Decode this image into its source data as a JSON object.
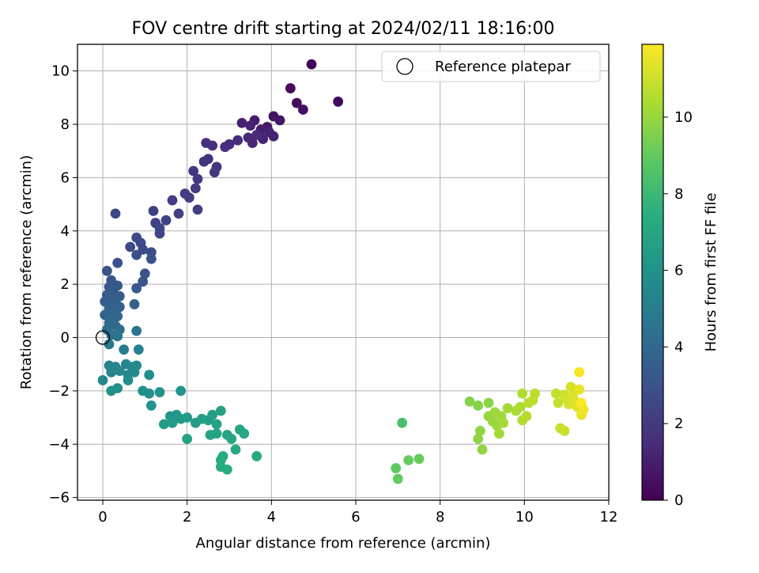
{
  "chart_data": {
    "type": "scatter",
    "title": "FOV centre drift starting at 2024/02/11 18:16:00",
    "xlabel": "Angular distance from reference (arcmin)",
    "ylabel": "Rotation from reference (arcmin)",
    "xlim": [
      -0.6,
      12
    ],
    "ylim": [
      -6.1,
      11.0
    ],
    "xticks": [
      0,
      2,
      4,
      6,
      8,
      10,
      12
    ],
    "yticks": [
      -6,
      -4,
      -2,
      0,
      2,
      4,
      6,
      8,
      10
    ],
    "grid": true,
    "legend": {
      "placement": "top-right",
      "entries": [
        "Reference platepar"
      ]
    },
    "reference_point": {
      "x": 0,
      "y": 0,
      "label": "Reference platepar"
    },
    "colorbar": {
      "label": "Hours from first FF file",
      "colormap": "viridis",
      "range": [
        0,
        11.9
      ],
      "ticks": [
        0,
        2,
        4,
        6,
        8,
        10
      ]
    },
    "points": [
      {
        "x": 4.95,
        "y": 10.25,
        "h": 0.1
      },
      {
        "x": 5.58,
        "y": 8.85,
        "h": 0.2
      },
      {
        "x": 4.45,
        "y": 9.35,
        "h": 0.3
      },
      {
        "x": 4.6,
        "y": 8.8,
        "h": 0.4
      },
      {
        "x": 4.75,
        "y": 8.55,
        "h": 0.5
      },
      {
        "x": 4.05,
        "y": 8.3,
        "h": 0.6
      },
      {
        "x": 4.2,
        "y": 8.15,
        "h": 0.7
      },
      {
        "x": 3.9,
        "y": 7.9,
        "h": 0.8
      },
      {
        "x": 3.6,
        "y": 8.15,
        "h": 0.9
      },
      {
        "x": 3.75,
        "y": 7.8,
        "h": 1.0
      },
      {
        "x": 3.3,
        "y": 8.05,
        "h": 1.05
      },
      {
        "x": 3.5,
        "y": 7.95,
        "h": 1.1
      },
      {
        "x": 4.05,
        "y": 7.55,
        "h": 1.15
      },
      {
        "x": 3.95,
        "y": 7.7,
        "h": 1.2
      },
      {
        "x": 3.8,
        "y": 7.45,
        "h": 1.25
      },
      {
        "x": 3.55,
        "y": 7.3,
        "h": 1.3
      },
      {
        "x": 3.45,
        "y": 7.5,
        "h": 1.35
      },
      {
        "x": 3.65,
        "y": 7.6,
        "h": 1.4
      },
      {
        "x": 3.2,
        "y": 7.4,
        "h": 1.45
      },
      {
        "x": 3.0,
        "y": 7.25,
        "h": 1.5
      },
      {
        "x": 2.9,
        "y": 7.15,
        "h": 1.55
      },
      {
        "x": 2.6,
        "y": 7.2,
        "h": 1.6
      },
      {
        "x": 2.45,
        "y": 7.3,
        "h": 1.65
      },
      {
        "x": 2.5,
        "y": 6.7,
        "h": 1.7
      },
      {
        "x": 2.4,
        "y": 6.6,
        "h": 1.75
      },
      {
        "x": 2.7,
        "y": 6.4,
        "h": 1.8
      },
      {
        "x": 2.65,
        "y": 6.2,
        "h": 1.85
      },
      {
        "x": 2.15,
        "y": 6.25,
        "h": 1.9
      },
      {
        "x": 2.25,
        "y": 5.95,
        "h": 1.95
      },
      {
        "x": 2.2,
        "y": 5.6,
        "h": 2.0
      },
      {
        "x": 1.95,
        "y": 5.4,
        "h": 2.05
      },
      {
        "x": 2.05,
        "y": 5.25,
        "h": 2.1
      },
      {
        "x": 1.65,
        "y": 5.15,
        "h": 2.15
      },
      {
        "x": 2.25,
        "y": 4.8,
        "h": 2.2
      },
      {
        "x": 1.8,
        "y": 4.65,
        "h": 2.25
      },
      {
        "x": 1.2,
        "y": 4.75,
        "h": 2.3
      },
      {
        "x": 1.25,
        "y": 4.3,
        "h": 2.35
      },
      {
        "x": 1.5,
        "y": 4.4,
        "h": 2.4
      },
      {
        "x": 1.35,
        "y": 4.1,
        "h": 2.45
      },
      {
        "x": 1.35,
        "y": 3.9,
        "h": 2.5
      },
      {
        "x": 0.3,
        "y": 4.65,
        "h": 2.55
      },
      {
        "x": 0.8,
        "y": 3.75,
        "h": 2.6
      },
      {
        "x": 0.9,
        "y": 3.55,
        "h": 2.65
      },
      {
        "x": 0.65,
        "y": 3.4,
        "h": 2.7
      },
      {
        "x": 0.95,
        "y": 3.3,
        "h": 2.75
      },
      {
        "x": 1.15,
        "y": 3.2,
        "h": 2.8
      },
      {
        "x": 0.8,
        "y": 3.1,
        "h": 2.85
      },
      {
        "x": 1.15,
        "y": 2.95,
        "h": 2.9
      },
      {
        "x": 0.35,
        "y": 2.8,
        "h": 2.95
      },
      {
        "x": 0.1,
        "y": 2.5,
        "h": 3.0
      },
      {
        "x": 1.0,
        "y": 2.4,
        "h": 3.05
      },
      {
        "x": 0.95,
        "y": 2.1,
        "h": 3.1
      },
      {
        "x": 0.2,
        "y": 2.15,
        "h": 3.15
      },
      {
        "x": 0.15,
        "y": 1.9,
        "h": 3.2
      },
      {
        "x": 0.35,
        "y": 1.95,
        "h": 3.25
      },
      {
        "x": 0.8,
        "y": 1.85,
        "h": 3.3
      },
      {
        "x": 0.25,
        "y": 1.7,
        "h": 3.35
      },
      {
        "x": 0.1,
        "y": 1.6,
        "h": 3.4
      },
      {
        "x": 0.4,
        "y": 1.55,
        "h": 3.45
      },
      {
        "x": 0.2,
        "y": 1.45,
        "h": 3.5
      },
      {
        "x": 0.05,
        "y": 1.35,
        "h": 3.55
      },
      {
        "x": 0.3,
        "y": 1.3,
        "h": 3.6
      },
      {
        "x": 0.75,
        "y": 1.25,
        "h": 3.65
      },
      {
        "x": 0.15,
        "y": 1.1,
        "h": 3.7
      },
      {
        "x": 0.4,
        "y": 1.15,
        "h": 3.75
      },
      {
        "x": 0.25,
        "y": 0.95,
        "h": 3.8
      },
      {
        "x": 0.05,
        "y": 0.85,
        "h": 3.85
      },
      {
        "x": 0.2,
        "y": 0.7,
        "h": 3.9
      },
      {
        "x": 0.35,
        "y": 0.8,
        "h": 3.95
      },
      {
        "x": 0.15,
        "y": 0.55,
        "h": 4.0
      },
      {
        "x": 0.3,
        "y": 0.45,
        "h": 4.1
      },
      {
        "x": 0.1,
        "y": 0.3,
        "h": 4.2
      },
      {
        "x": 0.4,
        "y": 0.3,
        "h": 4.3
      },
      {
        "x": 0.2,
        "y": 0.1,
        "h": 4.4
      },
      {
        "x": 0.35,
        "y": 0.05,
        "h": 4.5
      },
      {
        "x": 0.8,
        "y": 0.25,
        "h": 4.6
      },
      {
        "x": 0.15,
        "y": -0.25,
        "h": 4.8
      },
      {
        "x": 0.5,
        "y": -0.45,
        "h": 5.0
      },
      {
        "x": 0.85,
        "y": -0.45,
        "h": 5.2
      },
      {
        "x": 0.15,
        "y": -1.05,
        "h": 5.3
      },
      {
        "x": 0.3,
        "y": -1.1,
        "h": 5.35
      },
      {
        "x": 0.55,
        "y": -1.0,
        "h": 5.4
      },
      {
        "x": 0.7,
        "y": -1.1,
        "h": 5.45
      },
      {
        "x": 0.8,
        "y": -1.05,
        "h": 5.5
      },
      {
        "x": 0.2,
        "y": -1.3,
        "h": 5.45
      },
      {
        "x": 0.4,
        "y": -1.25,
        "h": 5.5
      },
      {
        "x": 0.6,
        "y": -1.4,
        "h": 5.55
      },
      {
        "x": 0.75,
        "y": -1.3,
        "h": 5.6
      },
      {
        "x": 0.0,
        "y": -1.6,
        "h": 5.5
      },
      {
        "x": 0.6,
        "y": -1.6,
        "h": 5.7
      },
      {
        "x": 1.1,
        "y": -1.4,
        "h": 5.75
      },
      {
        "x": 0.35,
        "y": -1.9,
        "h": 5.8
      },
      {
        "x": 0.2,
        "y": -2.0,
        "h": 5.85
      },
      {
        "x": 0.95,
        "y": -2.0,
        "h": 5.9
      },
      {
        "x": 1.1,
        "y": -2.1,
        "h": 5.95
      },
      {
        "x": 1.35,
        "y": -2.05,
        "h": 6.0
      },
      {
        "x": 1.85,
        "y": -2.0,
        "h": 6.05
      },
      {
        "x": 1.15,
        "y": -2.55,
        "h": 6.1
      },
      {
        "x": 1.6,
        "y": -2.95,
        "h": 6.2
      },
      {
        "x": 1.75,
        "y": -2.9,
        "h": 6.25
      },
      {
        "x": 1.85,
        "y": -3.05,
        "h": 6.3
      },
      {
        "x": 2.0,
        "y": -3.0,
        "h": 6.35
      },
      {
        "x": 1.45,
        "y": -3.25,
        "h": 6.4
      },
      {
        "x": 1.65,
        "y": -3.2,
        "h": 6.45
      },
      {
        "x": 2.2,
        "y": -3.2,
        "h": 6.5
      },
      {
        "x": 2.35,
        "y": -3.05,
        "h": 6.55
      },
      {
        "x": 2.5,
        "y": -3.1,
        "h": 6.6
      },
      {
        "x": 2.6,
        "y": -2.9,
        "h": 6.65
      },
      {
        "x": 2.8,
        "y": -2.75,
        "h": 6.7
      },
      {
        "x": 2.7,
        "y": -3.25,
        "h": 6.75
      },
      {
        "x": 2.0,
        "y": -3.8,
        "h": 6.8
      },
      {
        "x": 2.55,
        "y": -3.65,
        "h": 6.85
      },
      {
        "x": 2.7,
        "y": -3.6,
        "h": 6.9
      },
      {
        "x": 2.95,
        "y": -3.65,
        "h": 6.95
      },
      {
        "x": 3.05,
        "y": -3.8,
        "h": 7.0
      },
      {
        "x": 3.25,
        "y": -3.45,
        "h": 7.05
      },
      {
        "x": 3.35,
        "y": -3.6,
        "h": 7.1
      },
      {
        "x": 3.15,
        "y": -4.2,
        "h": 7.15
      },
      {
        "x": 3.65,
        "y": -4.45,
        "h": 7.2
      },
      {
        "x": 2.85,
        "y": -4.45,
        "h": 7.25
      },
      {
        "x": 2.8,
        "y": -4.6,
        "h": 7.3
      },
      {
        "x": 2.8,
        "y": -4.85,
        "h": 7.35
      },
      {
        "x": 2.95,
        "y": -4.95,
        "h": 7.4
      },
      {
        "x": 7.1,
        "y": -3.2,
        "h": 8.4
      },
      {
        "x": 6.95,
        "y": -4.9,
        "h": 8.9
      },
      {
        "x": 7.0,
        "y": -5.3,
        "h": 9.0
      },
      {
        "x": 7.25,
        "y": -4.6,
        "h": 9.05
      },
      {
        "x": 7.5,
        "y": -4.55,
        "h": 9.1
      },
      {
        "x": 8.7,
        "y": -2.4,
        "h": 9.6
      },
      {
        "x": 8.9,
        "y": -2.55,
        "h": 9.7
      },
      {
        "x": 9.15,
        "y": -2.45,
        "h": 9.75
      },
      {
        "x": 8.9,
        "y": -3.8,
        "h": 9.8
      },
      {
        "x": 8.95,
        "y": -3.5,
        "h": 9.85
      },
      {
        "x": 9.0,
        "y": -4.2,
        "h": 9.9
      },
      {
        "x": 9.15,
        "y": -2.95,
        "h": 9.95
      },
      {
        "x": 9.25,
        "y": -3.15,
        "h": 10.0
      },
      {
        "x": 9.35,
        "y": -3.3,
        "h": 10.05
      },
      {
        "x": 9.3,
        "y": -2.8,
        "h": 10.1
      },
      {
        "x": 9.45,
        "y": -2.95,
        "h": 10.15
      },
      {
        "x": 9.6,
        "y": -2.65,
        "h": 10.2
      },
      {
        "x": 9.4,
        "y": -3.6,
        "h": 10.25
      },
      {
        "x": 9.5,
        "y": -3.2,
        "h": 10.3
      },
      {
        "x": 9.8,
        "y": -2.75,
        "h": 10.35
      },
      {
        "x": 9.9,
        "y": -2.6,
        "h": 10.4
      },
      {
        "x": 9.95,
        "y": -2.1,
        "h": 10.45
      },
      {
        "x": 9.95,
        "y": -3.1,
        "h": 10.5
      },
      {
        "x": 10.05,
        "y": -2.95,
        "h": 10.55
      },
      {
        "x": 10.1,
        "y": -2.45,
        "h": 10.6
      },
      {
        "x": 10.25,
        "y": -2.1,
        "h": 10.65
      },
      {
        "x": 10.2,
        "y": -2.35,
        "h": 10.7
      },
      {
        "x": 10.75,
        "y": -2.1,
        "h": 10.8
      },
      {
        "x": 10.8,
        "y": -2.45,
        "h": 10.85
      },
      {
        "x": 10.85,
        "y": -3.4,
        "h": 10.9
      },
      {
        "x": 10.95,
        "y": -3.5,
        "h": 10.95
      },
      {
        "x": 10.95,
        "y": -2.15,
        "h": 11.0
      },
      {
        "x": 11.0,
        "y": -2.3,
        "h": 11.05
      },
      {
        "x": 11.05,
        "y": -2.5,
        "h": 11.1
      },
      {
        "x": 11.1,
        "y": -1.85,
        "h": 11.15
      },
      {
        "x": 11.15,
        "y": -2.2,
        "h": 11.2
      },
      {
        "x": 11.2,
        "y": -2.4,
        "h": 11.25
      },
      {
        "x": 11.25,
        "y": -2.6,
        "h": 11.35
      },
      {
        "x": 11.3,
        "y": -1.95,
        "h": 11.45
      },
      {
        "x": 11.35,
        "y": -2.9,
        "h": 11.55
      },
      {
        "x": 11.4,
        "y": -2.7,
        "h": 11.65
      },
      {
        "x": 11.3,
        "y": -1.3,
        "h": 11.75
      },
      {
        "x": 11.35,
        "y": -2.45,
        "h": 11.85
      }
    ]
  }
}
